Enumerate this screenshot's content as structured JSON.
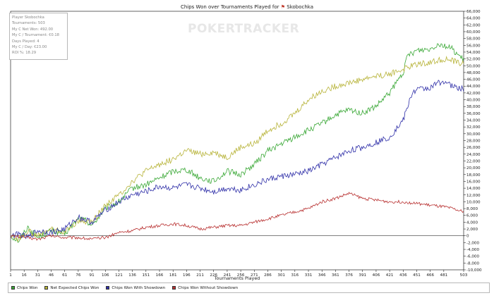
{
  "chart_data": {
    "type": "line",
    "title": "Chips Won over Tournaments Played for",
    "player_name": "Skobochka",
    "xlabel": "Tournaments Played",
    "ylabel": "",
    "xlim": [
      1,
      503
    ],
    "ylim": [
      -10000,
      66000
    ],
    "x_ticks": [
      "1",
      "16",
      "31",
      "46",
      "61",
      "76",
      "91",
      "106",
      "121",
      "136",
      "151",
      "166",
      "181",
      "196",
      "211",
      "226",
      "241",
      "256",
      "271",
      "286",
      "301",
      "316",
      "331",
      "346",
      "361",
      "376",
      "391",
      "406",
      "421",
      "436",
      "451",
      "466",
      "481",
      "503"
    ],
    "y_ticks": [
      "66,000",
      "64,000",
      "62,000",
      "60,000",
      "58,000",
      "56,000",
      "54,000",
      "52,000",
      "50,000",
      "48,000",
      "46,000",
      "44,000",
      "42,000",
      "40,000",
      "38,000",
      "36,000",
      "34,000",
      "32,000",
      "30,000",
      "28,000",
      "26,000",
      "24,000",
      "22,000",
      "20,000",
      "18,000",
      "16,000",
      "14,000",
      "12,000",
      "10,000",
      "8,000",
      "6,000",
      "4,000",
      "2,000",
      "0",
      "-2,000",
      "-4,000",
      "-6,000",
      "-8,000",
      "-10,000"
    ],
    "grid": false,
    "legend_position": "bottom",
    "series": [
      {
        "name": "Chips Won",
        "color": "#3aa836",
        "points": [
          [
            1,
            0
          ],
          [
            10,
            -1500
          ],
          [
            20,
            2500
          ],
          [
            31,
            -500
          ],
          [
            46,
            1500
          ],
          [
            61,
            500
          ],
          [
            76,
            5000
          ],
          [
            85,
            4500
          ],
          [
            91,
            3000
          ],
          [
            106,
            8000
          ],
          [
            121,
            10000
          ],
          [
            136,
            14000
          ],
          [
            151,
            15000
          ],
          [
            166,
            17000
          ],
          [
            181,
            19000
          ],
          [
            196,
            19500
          ],
          [
            211,
            17000
          ],
          [
            226,
            16000
          ],
          [
            241,
            19000
          ],
          [
            256,
            18000
          ],
          [
            271,
            21000
          ],
          [
            286,
            25000
          ],
          [
            301,
            27000
          ],
          [
            316,
            29000
          ],
          [
            331,
            31000
          ],
          [
            346,
            33000
          ],
          [
            361,
            35500
          ],
          [
            376,
            37000
          ],
          [
            391,
            36000
          ],
          [
            406,
            38000
          ],
          [
            421,
            42000
          ],
          [
            436,
            48000
          ],
          [
            441,
            53000
          ],
          [
            451,
            54500
          ],
          [
            466,
            55000
          ],
          [
            475,
            56500
          ],
          [
            481,
            56000
          ],
          [
            490,
            55000
          ],
          [
            503,
            51500
          ]
        ]
      },
      {
        "name": "Net Expected Chips Won",
        "color": "#b8b43a",
        "points": [
          [
            1,
            0
          ],
          [
            10,
            -1000
          ],
          [
            20,
            1500
          ],
          [
            31,
            0
          ],
          [
            46,
            2000
          ],
          [
            61,
            1000
          ],
          [
            76,
            4500
          ],
          [
            91,
            4000
          ],
          [
            106,
            9000
          ],
          [
            121,
            12000
          ],
          [
            136,
            16000
          ],
          [
            151,
            19000
          ],
          [
            166,
            21000
          ],
          [
            181,
            22500
          ],
          [
            196,
            25000
          ],
          [
            211,
            24000
          ],
          [
            226,
            24500
          ],
          [
            241,
            23000
          ],
          [
            256,
            26000
          ],
          [
            271,
            27000
          ],
          [
            286,
            31000
          ],
          [
            301,
            33000
          ],
          [
            316,
            36000
          ],
          [
            331,
            40000
          ],
          [
            346,
            42500
          ],
          [
            361,
            44000
          ],
          [
            376,
            45000
          ],
          [
            391,
            46000
          ],
          [
            406,
            47000
          ],
          [
            421,
            47500
          ],
          [
            436,
            49000
          ],
          [
            451,
            50500
          ],
          [
            466,
            51000
          ],
          [
            481,
            52000
          ],
          [
            490,
            51500
          ],
          [
            503,
            50500
          ]
        ]
      },
      {
        "name": "Chips Won With Showdown",
        "color": "#2f2fa8",
        "points": [
          [
            1,
            0
          ],
          [
            10,
            500
          ],
          [
            20,
            -500
          ],
          [
            31,
            1500
          ],
          [
            46,
            1000
          ],
          [
            61,
            2000
          ],
          [
            76,
            5500
          ],
          [
            91,
            4000
          ],
          [
            106,
            7500
          ],
          [
            121,
            10000
          ],
          [
            136,
            12000
          ],
          [
            151,
            13000
          ],
          [
            166,
            14500
          ],
          [
            181,
            14000
          ],
          [
            196,
            15000
          ],
          [
            211,
            14000
          ],
          [
            226,
            13000
          ],
          [
            241,
            14000
          ],
          [
            256,
            13500
          ],
          [
            271,
            15000
          ],
          [
            286,
            16500
          ],
          [
            301,
            17500
          ],
          [
            316,
            18000
          ],
          [
            331,
            19000
          ],
          [
            346,
            21000
          ],
          [
            361,
            23000
          ],
          [
            376,
            25000
          ],
          [
            391,
            26000
          ],
          [
            406,
            27500
          ],
          [
            421,
            29000
          ],
          [
            436,
            34000
          ],
          [
            446,
            42000
          ],
          [
            451,
            43000
          ],
          [
            466,
            43500
          ],
          [
            475,
            45000
          ],
          [
            481,
            45500
          ],
          [
            490,
            44000
          ],
          [
            503,
            43000
          ]
        ]
      },
      {
        "name": "Chips Won Without Showdown",
        "color": "#b83030",
        "points": [
          [
            1,
            0
          ],
          [
            20,
            -500
          ],
          [
            31,
            -1000
          ],
          [
            46,
            0
          ],
          [
            61,
            -500
          ],
          [
            76,
            -500
          ],
          [
            91,
            -1000
          ],
          [
            106,
            -500
          ],
          [
            121,
            1000
          ],
          [
            136,
            1500
          ],
          [
            151,
            2500
          ],
          [
            166,
            3000
          ],
          [
            181,
            3500
          ],
          [
            196,
            3000
          ],
          [
            211,
            2000
          ],
          [
            226,
            2500
          ],
          [
            241,
            3000
          ],
          [
            256,
            3000
          ],
          [
            271,
            4000
          ],
          [
            286,
            5000
          ],
          [
            301,
            6000
          ],
          [
            316,
            7000
          ],
          [
            331,
            8000
          ],
          [
            346,
            10000
          ],
          [
            361,
            11000
          ],
          [
            376,
            12500
          ],
          [
            391,
            11000
          ],
          [
            406,
            10500
          ],
          [
            421,
            10000
          ],
          [
            436,
            10000
          ],
          [
            451,
            9500
          ],
          [
            466,
            9000
          ],
          [
            481,
            8500
          ],
          [
            490,
            8000
          ],
          [
            503,
            7000
          ]
        ]
      }
    ]
  },
  "stats": {
    "lines": [
      "Player Skobochka",
      "Tournaments: 503",
      "My C Net Won: 492.00",
      "My C / Tournament: €0.18",
      "Days Played: 4",
      "My C / Day: €23.00",
      "ROI %: 18.29"
    ]
  },
  "watermark": "POKERTRACKER"
}
